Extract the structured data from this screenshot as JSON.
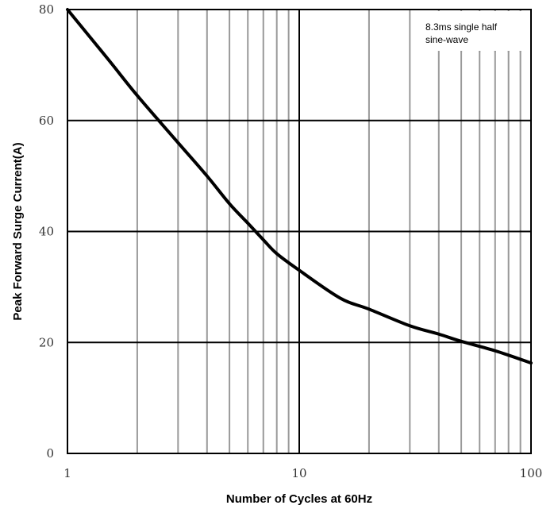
{
  "chart_data": {
    "type": "line",
    "xlabel": "Number of Cycles  at  60Hz",
    "ylabel": "Peak  Forward  Surge Current(A)",
    "xscale": "log",
    "xlim": [
      1,
      100
    ],
    "ylim": [
      0,
      80
    ],
    "xticks": [
      1,
      10,
      100
    ],
    "xtick_labels": [
      "1",
      "10",
      "100"
    ],
    "yticks": [
      0,
      20,
      40,
      60,
      80
    ],
    "ytick_labels": [
      "0",
      "20",
      "40",
      "60",
      "80"
    ],
    "grid": true,
    "annotation_lines": [
      "8.3ms single half",
      "sine-wave"
    ],
    "series": [
      {
        "x": [
          1,
          1.5,
          2,
          3,
          4,
          5,
          6,
          7,
          8,
          10,
          15,
          20,
          30,
          40,
          50,
          70,
          100
        ],
        "values": [
          80,
          71,
          64.5,
          56,
          50,
          45,
          41.5,
          38.5,
          36,
          33,
          28,
          26,
          23,
          21.5,
          20.2,
          18.5,
          16.3
        ]
      }
    ],
    "colors": {
      "line": "#000000",
      "major_grid": "#000000",
      "minor_grid": "#999999"
    }
  }
}
